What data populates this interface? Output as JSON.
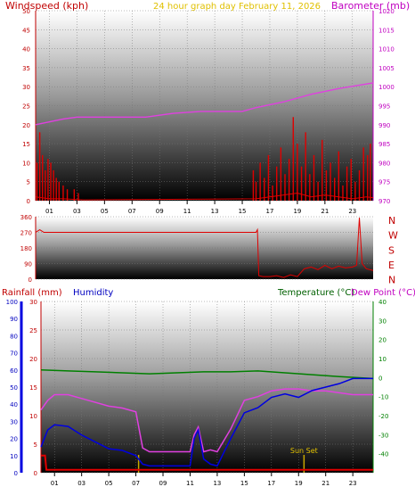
{
  "header": {
    "left_title": "Windspeed (kph)",
    "center_title": "24 hour graph day   February 11, 2026",
    "right_title": "Barometer (mb)"
  },
  "colors": {
    "wind": "#e00000",
    "gust": "#e00000",
    "baro": "#e040e0",
    "rain": "#e00000",
    "humidity": "#0000e0",
    "temperature": "#008000",
    "dewpoint": "#e040e0",
    "direction": "#e00000",
    "sunset": "#c8a800"
  },
  "chart_data": [
    {
      "type": "line",
      "panel": "wind-baro",
      "x_ticks": [
        "01",
        "03",
        "05",
        "07",
        "09",
        "11",
        "13",
        "15",
        "17",
        "19",
        "21",
        "23"
      ],
      "y_left_ticks": [
        "0",
        "5",
        "10",
        "15",
        "20",
        "25",
        "30",
        "35",
        "40",
        "45",
        "50"
      ],
      "y_right_ticks": [
        "970",
        "975",
        "980",
        "985",
        "990",
        "995",
        "1000",
        "1005",
        "1010",
        "1015",
        "1020"
      ],
      "ylim_left": [
        0,
        50
      ],
      "ylim_right": [
        970,
        1020
      ],
      "xlim": [
        0,
        24.5
      ],
      "series": [
        {
          "name": "Barometer",
          "axis": "right",
          "x": [
            0,
            2,
            3,
            5,
            8,
            10,
            12,
            13,
            15,
            16,
            18,
            20,
            22,
            24.5
          ],
          "y": [
            990,
            991.5,
            992,
            992,
            992,
            993,
            993.5,
            993.5,
            993.5,
            994.5,
            996,
            998,
            999.5,
            1001
          ]
        },
        {
          "name": "Windspeed gusts",
          "axis": "left",
          "style": "bars",
          "x": [
            0.1,
            0.3,
            0.5,
            0.7,
            0.9,
            1.1,
            1.3,
            1.5,
            1.7,
            2.0,
            2.3,
            2.8,
            3.1,
            15.8,
            16.0,
            16.3,
            16.6,
            16.9,
            17.2,
            17.5,
            17.8,
            18.1,
            18.4,
            18.7,
            19.0,
            19.3,
            19.6,
            19.9,
            20.2,
            20.5,
            20.8,
            21.1,
            21.4,
            21.7,
            22.0,
            22.3,
            22.6,
            22.9,
            23.2,
            23.5,
            23.8,
            24.1,
            24.3
          ],
          "y": [
            10,
            18,
            12,
            8,
            11,
            10,
            8,
            6,
            5,
            4,
            3,
            3,
            2,
            8,
            5,
            10,
            6,
            12,
            4,
            9,
            14,
            7,
            11,
            22,
            15,
            9,
            18,
            7,
            12,
            5,
            16,
            8,
            10,
            6,
            13,
            4,
            9,
            11,
            5,
            8,
            14,
            12,
            15
          ]
        },
        {
          "name": "Windspeed",
          "axis": "left",
          "x": [
            0,
            1,
            2,
            3,
            3.5,
            16,
            17,
            18,
            19,
            20,
            21,
            22,
            23,
            24,
            24.5
          ],
          "y": [
            1,
            0.5,
            0.5,
            0.3,
            0.2,
            0.5,
            1,
            1.5,
            2,
            1,
            1.5,
            1,
            0.5,
            1,
            0.8
          ]
        }
      ]
    },
    {
      "type": "line",
      "panel": "wind-direction",
      "y_ticks": [
        "0",
        "90",
        "180",
        "270",
        "360"
      ],
      "direction_labels": [
        "N",
        "W",
        "S",
        "E",
        "N"
      ],
      "ylim": [
        0,
        360
      ],
      "xlim": [
        0,
        24.5
      ],
      "series": [
        {
          "name": "Wind direction",
          "x": [
            0,
            0.3,
            0.6,
            1,
            2,
            4,
            8,
            12,
            15,
            16,
            16.1,
            16.2,
            16.5,
            17,
            17.5,
            18,
            18.5,
            19,
            19.5,
            20,
            20.5,
            21,
            21.5,
            22,
            22.5,
            23,
            23.3,
            23.5,
            23.7,
            24,
            24.5
          ],
          "y": [
            270,
            285,
            270,
            270,
            270,
            270,
            270,
            270,
            270,
            270,
            285,
            20,
            15,
            15,
            20,
            10,
            25,
            15,
            60,
            70,
            55,
            80,
            60,
            75,
            65,
            70,
            80,
            355,
            90,
            60,
            50
          ]
        }
      ]
    },
    {
      "type": "line",
      "panel": "rain-hum-temp",
      "sun_label": "Sun Set",
      "x_ticks": [
        "01",
        "03",
        "05",
        "07",
        "09",
        "11",
        "13",
        "15",
        "17",
        "19",
        "21",
        "23"
      ],
      "y_humidity_ticks": [
        "0",
        "10",
        "20",
        "30",
        "40",
        "50",
        "60",
        "70",
        "80",
        "90",
        "100"
      ],
      "y_rain_ticks": [
        "0",
        "5",
        "10",
        "15",
        "20",
        "25",
        "30"
      ],
      "y_temp_ticks": [
        "40",
        "30",
        "20",
        "10",
        "0",
        "-10",
        "-20",
        "-30",
        "-40"
      ],
      "ylim_humidity": [
        0,
        100
      ],
      "ylim_rain": [
        0,
        30
      ],
      "ylim_temp": [
        -50,
        40
      ],
      "xlim": [
        0,
        24.5
      ],
      "rain_markers_x": [
        7.2,
        19.4
      ],
      "series": [
        {
          "name": "Temperature",
          "axis": "temp",
          "x": [
            0,
            2,
            4,
            6,
            8,
            10,
            12,
            14,
            16,
            18,
            20,
            22,
            24.5
          ],
          "y": [
            4,
            3.5,
            3,
            2.5,
            2,
            2.5,
            3,
            3,
            3.5,
            2.5,
            1.5,
            0.5,
            -0.5
          ]
        },
        {
          "name": "Dew Point",
          "axis": "temp",
          "x": [
            0,
            0.5,
            1,
            2,
            3,
            4,
            5,
            6,
            7,
            7.5,
            8,
            9,
            10,
            11,
            11.3,
            11.6,
            12,
            12.5,
            13,
            14,
            15,
            16,
            17,
            18,
            19,
            20,
            21,
            22,
            23,
            24.5
          ],
          "y": [
            -17,
            -12,
            -9,
            -9,
            -11,
            -13,
            -15,
            -16,
            -18,
            -37,
            -39,
            -39,
            -39,
            -39,
            -30,
            -26,
            -39,
            -38,
            -39,
            -27,
            -12,
            -10,
            -7,
            -6,
            -6,
            -7,
            -7,
            -8,
            -9,
            -9
          ]
        },
        {
          "name": "Humidity",
          "axis": "humidity",
          "x": [
            0,
            0.5,
            1,
            2,
            3,
            4,
            5,
            6,
            7,
            7.5,
            8,
            9,
            10,
            11,
            11.3,
            11.6,
            12,
            12.5,
            13,
            14,
            15,
            16,
            17,
            18,
            19,
            20,
            21,
            22,
            23,
            24.5
          ],
          "y": [
            15,
            25,
            28,
            27,
            22,
            18,
            14,
            13,
            10,
            5,
            4,
            4,
            4,
            4,
            20,
            25,
            8,
            5,
            4,
            20,
            35,
            38,
            44,
            46,
            44,
            48,
            50,
            52,
            55,
            55
          ]
        },
        {
          "name": "Rainfall",
          "axis": "rain",
          "x": [
            0,
            0.3,
            0.4,
            24.5
          ],
          "y": [
            3,
            3,
            0.5,
            0.5
          ]
        }
      ]
    }
  ],
  "labels": {
    "rainfall": "Rainfall (mm)",
    "humidity": "Humidity",
    "temperature": "Temperature (°C)",
    "dewpoint": "Dew Point (°C)"
  }
}
